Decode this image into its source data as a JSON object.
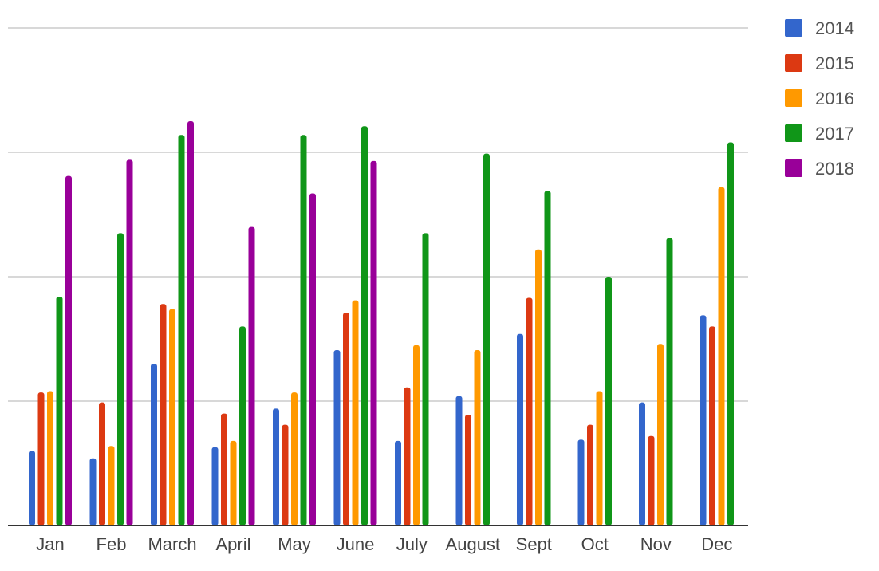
{
  "chart_data": {
    "type": "bar",
    "categories": [
      "Jan",
      "Feb",
      "March",
      "April",
      "May",
      "June",
      "July",
      "August",
      "Sept",
      "Oct",
      "Nov",
      "Dec"
    ],
    "series": [
      {
        "name": "2014",
        "color": "#3366cc",
        "values": [
          0.6,
          0.54,
          1.3,
          0.63,
          0.94,
          1.41,
          0.68,
          1.04,
          1.54,
          0.69,
          0.99,
          1.69
        ]
      },
      {
        "name": "2015",
        "color": "#dc3912",
        "values": [
          1.07,
          0.99,
          1.78,
          0.9,
          0.81,
          1.71,
          1.11,
          0.89,
          1.83,
          0.81,
          0.72,
          1.6
        ]
      },
      {
        "name": "2016",
        "color": "#ff9900",
        "values": [
          1.08,
          0.64,
          1.74,
          0.68,
          1.07,
          1.81,
          1.45,
          1.41,
          2.22,
          1.08,
          1.46,
          2.72
        ]
      },
      {
        "name": "2017",
        "color": "#109618",
        "values": [
          1.84,
          2.35,
          3.14,
          1.6,
          3.14,
          3.21,
          2.35,
          2.99,
          2.69,
          2.0,
          2.31,
          3.08
        ]
      },
      {
        "name": "2018",
        "color": "#990099",
        "values": [
          2.81,
          2.94,
          3.25,
          2.4,
          2.67,
          2.93,
          null,
          null,
          null,
          null,
          null,
          null
        ]
      }
    ],
    "ylim": [
      0,
      4
    ],
    "gridlines": [
      1,
      2,
      3,
      4
    ],
    "y_tick_labels_visible": false,
    "legend_position": "right",
    "grid": true
  }
}
